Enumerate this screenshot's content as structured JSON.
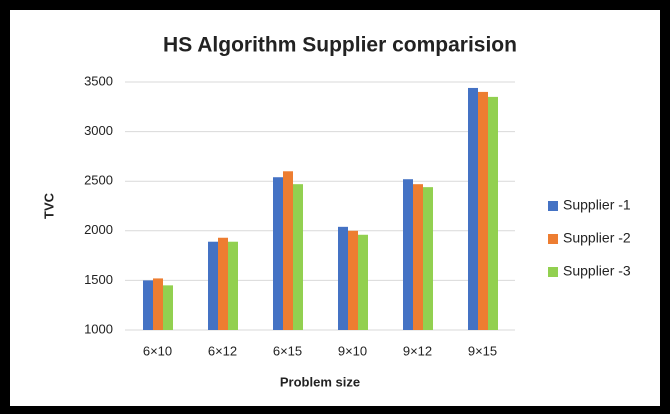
{
  "chart_data": {
    "type": "bar",
    "title": "HS Algorithm Supplier comparision",
    "xlabel": "Problem size",
    "ylabel": "TVC",
    "categories": [
      "6×10",
      "6×12",
      "6×15",
      "9×10",
      "9×12",
      "9×15"
    ],
    "series": [
      {
        "name": "Supplier -1",
        "color": "#4472c4",
        "values": [
          1500,
          1890,
          2540,
          2040,
          2520,
          3440
        ]
      },
      {
        "name": "Supplier -2",
        "color": "#ed7d31",
        "values": [
          1520,
          1930,
          2600,
          2000,
          2470,
          3400
        ]
      },
      {
        "name": "Supplier -3",
        "color": "#92d050",
        "values": [
          1450,
          1890,
          2470,
          1960,
          2440,
          3350
        ]
      }
    ],
    "ylim": [
      1000,
      3500
    ],
    "yticks": [
      1000,
      1500,
      2000,
      2500,
      3000,
      3500
    ],
    "grid": true,
    "legend": "right"
  }
}
